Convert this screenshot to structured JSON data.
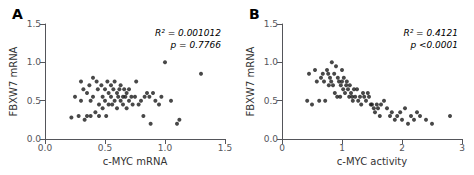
{
  "chart_data": [
    {
      "type": "scatter",
      "title": "A",
      "annotations": [
        "R² = 0.001012",
        "p = 0.7766"
      ],
      "xlabel": "c-MYC mRNA",
      "ylabel": "FBXW7 mRNA",
      "color": "#1a1a1a",
      "grid": false,
      "xlim": [
        0.0,
        1.5
      ],
      "ylim": [
        0.0,
        1.5
      ],
      "xticks": [
        {
          "value": 0,
          "label": "0.0"
        },
        0.5,
        {
          "value": 1,
          "label": "1.0"
        },
        1.5
      ],
      "yticks": [
        {
          "value": 0,
          "label": "0.0"
        },
        0.5,
        {
          "value": 1,
          "label": "1.0"
        },
        1.5
      ],
      "x": [
        0.22,
        0.25,
        0.28,
        0.3,
        0.3,
        0.32,
        0.33,
        0.35,
        0.35,
        0.37,
        0.38,
        0.38,
        0.4,
        0.4,
        0.42,
        0.43,
        0.44,
        0.45,
        0.45,
        0.47,
        0.48,
        0.48,
        0.5,
        0.5,
        0.51,
        0.52,
        0.53,
        0.53,
        0.55,
        0.55,
        0.56,
        0.57,
        0.58,
        0.58,
        0.6,
        0.6,
        0.61,
        0.62,
        0.63,
        0.63,
        0.65,
        0.65,
        0.66,
        0.67,
        0.68,
        0.68,
        0.7,
        0.7,
        0.72,
        0.73,
        0.75,
        0.76,
        0.78,
        0.8,
        0.82,
        0.83,
        0.85,
        0.87,
        0.88,
        0.9,
        0.92,
        0.95,
        0.97,
        1.0,
        1.05,
        1.1,
        1.12,
        1.3
      ],
      "values": [
        0.28,
        0.55,
        0.3,
        0.5,
        0.75,
        0.65,
        0.25,
        0.6,
        0.3,
        0.7,
        0.3,
        0.5,
        0.55,
        0.8,
        0.35,
        0.75,
        0.65,
        0.45,
        0.3,
        0.7,
        0.55,
        0.4,
        0.65,
        0.5,
        0.3,
        0.75,
        0.6,
        0.45,
        0.7,
        0.55,
        0.45,
        0.65,
        0.75,
        0.5,
        0.6,
        0.4,
        0.55,
        0.65,
        0.5,
        0.7,
        0.55,
        0.45,
        0.65,
        0.55,
        0.6,
        0.4,
        0.65,
        0.5,
        0.55,
        0.45,
        0.55,
        0.75,
        0.45,
        0.5,
        0.3,
        0.55,
        0.6,
        0.55,
        0.2,
        0.6,
        0.5,
        0.45,
        0.55,
        1.0,
        0.5,
        0.2,
        0.25,
        0.85
      ]
    },
    {
      "type": "scatter",
      "title": "B",
      "annotations": [
        "R² = 0.4121",
        "p <0.0001"
      ],
      "xlabel": "c-MYC activity",
      "ylabel": "FBXW7 mRNA",
      "color": "#1a1a1a",
      "grid": false,
      "xlim": [
        0,
        3
      ],
      "ylim": [
        0.0,
        1.5
      ],
      "xticks": [
        0,
        1,
        2,
        3
      ],
      "yticks": [
        {
          "value": 0,
          "label": "0.0"
        },
        0.5,
        {
          "value": 1,
          "label": "1.0"
        },
        1.5
      ],
      "x": [
        0.42,
        0.45,
        0.5,
        0.55,
        0.58,
        0.62,
        0.65,
        0.68,
        0.7,
        0.72,
        0.75,
        0.77,
        0.78,
        0.8,
        0.82,
        0.83,
        0.85,
        0.87,
        0.88,
        0.9,
        0.92,
        0.93,
        0.95,
        0.97,
        0.98,
        1.0,
        1.0,
        1.02,
        1.03,
        1.05,
        1.07,
        1.08,
        1.1,
        1.12,
        1.13,
        1.15,
        1.17,
        1.18,
        1.2,
        1.22,
        1.25,
        1.27,
        1.3,
        1.32,
        1.35,
        1.37,
        1.4,
        1.43,
        1.45,
        1.48,
        1.5,
        1.53,
        1.55,
        1.58,
        1.6,
        1.63,
        1.65,
        1.7,
        1.75,
        1.8,
        1.83,
        1.88,
        1.92,
        1.97,
        2.0,
        2.05,
        2.1,
        2.15,
        2.2,
        2.25,
        2.3,
        2.4,
        2.5,
        2.8
      ],
      "values": [
        0.5,
        0.85,
        0.45,
        0.9,
        0.75,
        0.5,
        0.8,
        0.85,
        0.75,
        0.5,
        0.9,
        0.85,
        0.7,
        0.8,
        0.75,
        1.0,
        0.7,
        0.85,
        0.6,
        0.95,
        0.55,
        0.8,
        0.75,
        0.55,
        0.7,
        0.75,
        0.9,
        0.65,
        0.8,
        0.6,
        0.7,
        0.75,
        0.65,
        0.55,
        0.7,
        0.6,
        0.55,
        0.5,
        0.65,
        0.55,
        0.65,
        0.5,
        0.55,
        0.45,
        0.6,
        0.55,
        0.5,
        0.6,
        0.55,
        0.45,
        0.45,
        0.4,
        0.35,
        0.45,
        0.4,
        0.3,
        0.45,
        0.5,
        0.4,
        0.3,
        0.35,
        0.25,
        0.3,
        0.35,
        0.25,
        0.4,
        0.2,
        0.3,
        0.25,
        0.35,
        0.3,
        0.25,
        0.2,
        0.3
      ]
    }
  ]
}
